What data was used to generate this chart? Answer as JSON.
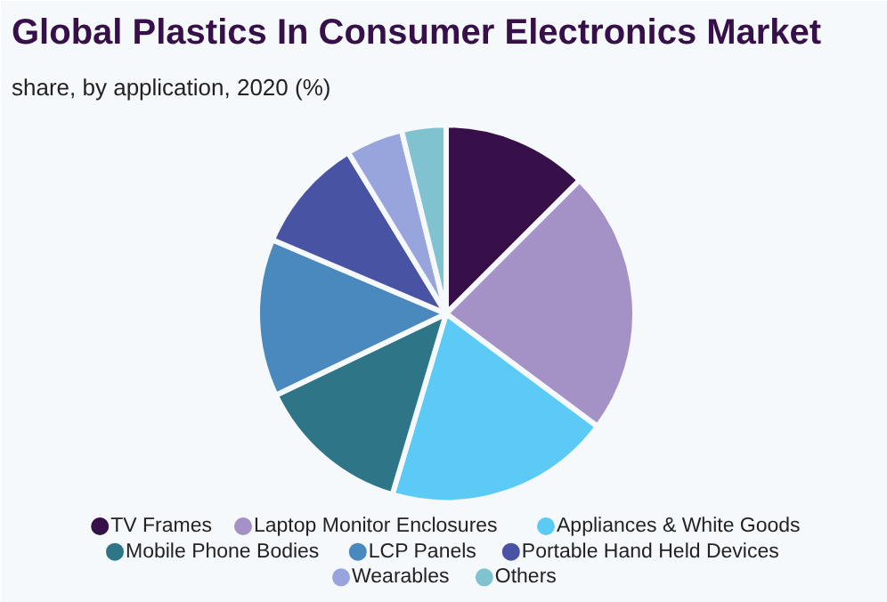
{
  "chart_data": {
    "type": "pie",
    "title": "Global Plastics In Consumer Electronics Market",
    "subtitle": "share, by application, 2020 (%)",
    "categories": [
      "TV Frames",
      "Laptop Monitor Enclosures",
      "Appliances & White Goods",
      "Mobile Phone Bodies",
      "LCP Panels",
      "Portable Hand Held Devices",
      "Wearables",
      "Others"
    ],
    "values": [
      12.5,
      22.7,
      19.4,
      13.3,
      13.5,
      9.9,
      4.9,
      3.8
    ],
    "colors": [
      "#37104a",
      "#a491c5",
      "#5bcbf5",
      "#2e7588",
      "#4a89bd",
      "#4953a3",
      "#98a5dc",
      "#80c2cf"
    ],
    "legend": "bottom"
  }
}
